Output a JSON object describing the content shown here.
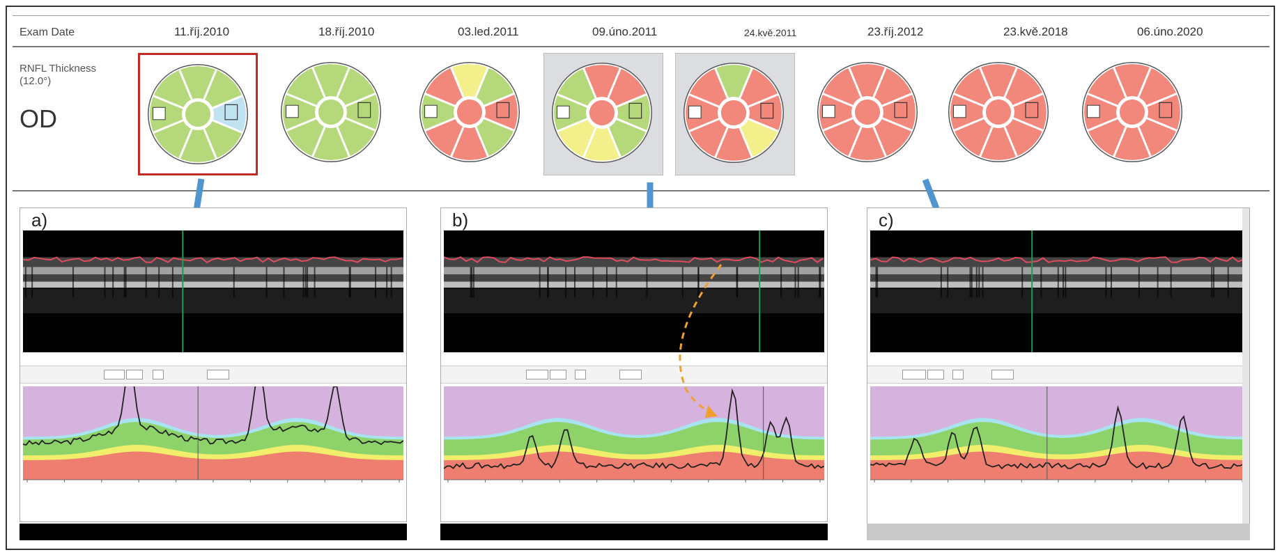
{
  "header": {
    "exam_date_label": "Exam Date",
    "rnfl_label_line1": "RNFL Thickness",
    "rnfl_label_line2": "(12.0°)",
    "eye_label": "OD",
    "dates": [
      "11.říj.2010",
      "18.říj.2010",
      "03.led.2011",
      "09.úno.2011",
      "24.kvě.2011",
      "23.říj.2012",
      "23.kvě.2018",
      "06.úno.2020"
    ]
  },
  "wheels": [
    {
      "style": "selected",
      "sectors": [
        "green",
        "green",
        "lightblue",
        "green",
        "green",
        "green",
        "green",
        "green",
        "green"
      ]
    },
    {
      "style": "plain",
      "sectors": [
        "green",
        "green",
        "green",
        "green",
        "green",
        "green",
        "green",
        "green",
        "green"
      ]
    },
    {
      "style": "plain",
      "sectors": [
        "yellow",
        "green",
        "red",
        "green",
        "red",
        "red",
        "green",
        "red",
        "red"
      ]
    },
    {
      "style": "grey",
      "sectors": [
        "red",
        "red",
        "green",
        "green",
        "yellow",
        "yellow",
        "green",
        "green",
        "red"
      ]
    },
    {
      "style": "grey",
      "sectors": [
        "green",
        "red",
        "red",
        "yellow",
        "red",
        "red",
        "red",
        "red",
        "red"
      ]
    },
    {
      "style": "plain",
      "sectors": [
        "red",
        "red",
        "red",
        "red",
        "red",
        "red",
        "red",
        "red",
        "red"
      ]
    },
    {
      "style": "plain",
      "sectors": [
        "red",
        "red",
        "red",
        "red",
        "red",
        "red",
        "red",
        "red",
        "red"
      ]
    },
    {
      "style": "plain",
      "sectors": [
        "red",
        "red",
        "red",
        "red",
        "red",
        "red",
        "red",
        "red",
        "red"
      ]
    }
  ],
  "panels": [
    {
      "label": "a)"
    },
    {
      "label": "b)"
    },
    {
      "label": "c)"
    }
  ],
  "colors": {
    "green": "#b5d97a",
    "lightblue": "#bfe3f0",
    "yellow": "#f3ef8a",
    "red": "#f2877c",
    "plot_purple": "#d6b3de",
    "plot_green": "#8ed36a",
    "plot_yellow": "#f1ee6c",
    "plot_red": "#ee7e6f",
    "plot_cyan": "#a8e3f0",
    "arrow_blue": "#4f95cf",
    "dashed_orange": "#f0a030",
    "selected_border": "#c62828"
  }
}
